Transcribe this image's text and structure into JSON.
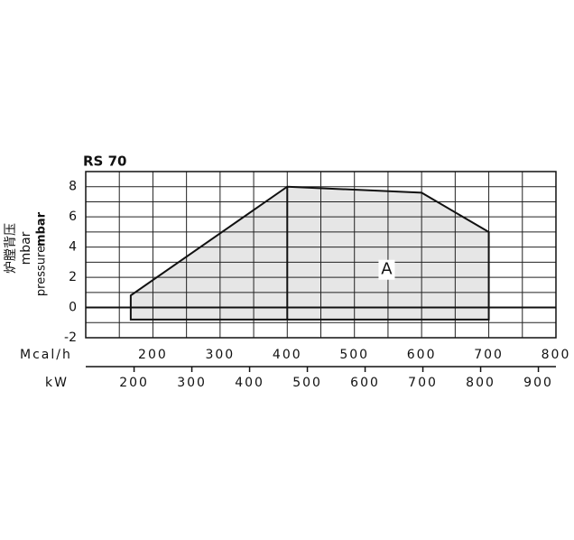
{
  "chart_data": {
    "type": "area",
    "title": "RS 70",
    "y_label_cn": "炉膛背压",
    "y_label_unit": "mbar",
    "y_label_en": "pressure",
    "y_label_en_unit": "mbar",
    "x_label": "Mcal/h",
    "x2_label": "kW",
    "x": [
      167,
      167,
      400,
      600,
      700,
      700
    ],
    "values": [
      -0.8,
      0.8,
      8,
      7.6,
      5,
      -0.8
    ],
    "annotation": {
      "text": "A",
      "x": 548,
      "y": 2.5
    },
    "xlim": [
      100,
      800
    ],
    "xticks": [
      200,
      300,
      400,
      500,
      600,
      700,
      800
    ],
    "x2lim": [
      116.3,
      930.4
    ],
    "x2ticks": [
      200,
      300,
      400,
      500,
      600,
      700,
      800,
      900
    ],
    "ylim": [
      -2,
      9
    ],
    "yticks": [
      -2,
      0,
      2,
      4,
      6,
      8
    ],
    "grid_x": [
      100,
      150,
      200,
      250,
      300,
      350,
      400,
      450,
      500,
      550,
      600,
      650,
      700,
      750,
      800
    ],
    "grid_y": [
      -2,
      -1,
      0,
      1,
      2,
      3,
      4,
      5,
      6,
      7,
      8,
      9
    ],
    "color": "#e6e6e6",
    "grid": true
  }
}
